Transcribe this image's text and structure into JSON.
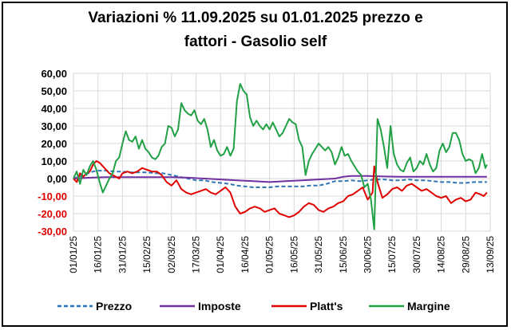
{
  "title_line1": "Variazioni % 11.09.2025 su 01.01.2025 prezzo e",
  "title_line2": "fattori - Gasolio self",
  "chart_data": {
    "type": "line",
    "title": "Variazioni % 11.09.2025 su 01.01.2025 prezzo e fattori - Gasolio self",
    "ylim": [
      -30,
      60
    ],
    "y_ticks": [
      "60,00",
      "50,00",
      "40,00",
      "30,00",
      "20,00",
      "10,00",
      "0,00",
      "-10,00",
      "-20,00",
      "-30,00"
    ],
    "x_ticks": [
      "01/01/25",
      "16/01/25",
      "31/01/25",
      "15/02/25",
      "02/03/25",
      "17/03/25",
      "01/04/25",
      "16/04/25",
      "01/05/25",
      "16/05/25",
      "31/05/25",
      "15/06/25",
      "30/06/25",
      "15/07/25",
      "30/07/25",
      "14/08/25",
      "29/08/25",
      "13/09/25"
    ],
    "grid": true,
    "legend_position": "bottom",
    "x_unit": "days since 01/01/25",
    "series": [
      {
        "name": "Prezzo",
        "color": "#2e75b6",
        "dash": true,
        "points": [
          [
            0,
            0
          ],
          [
            3,
            1
          ],
          [
            6,
            2
          ],
          [
            9,
            3
          ],
          [
            12,
            4
          ],
          [
            15,
            4.5
          ],
          [
            20,
            4.5
          ],
          [
            25,
            4
          ],
          [
            30,
            4
          ],
          [
            35,
            3.5
          ],
          [
            40,
            3.5
          ],
          [
            45,
            3.5
          ],
          [
            50,
            3
          ],
          [
            55,
            3
          ],
          [
            60,
            2
          ],
          [
            65,
            1
          ],
          [
            70,
            0
          ],
          [
            75,
            -1
          ],
          [
            80,
            -1
          ],
          [
            85,
            -2
          ],
          [
            90,
            -2.5
          ],
          [
            95,
            -3
          ],
          [
            100,
            -4
          ],
          [
            105,
            -4.5
          ],
          [
            110,
            -5
          ],
          [
            115,
            -5
          ],
          [
            120,
            -5
          ],
          [
            125,
            -4.5
          ],
          [
            130,
            -4.5
          ],
          [
            135,
            -4.5
          ],
          [
            140,
            -4.5
          ],
          [
            145,
            -4
          ],
          [
            150,
            -4
          ],
          [
            155,
            -3
          ],
          [
            160,
            -1.5
          ],
          [
            165,
            -1.5
          ],
          [
            170,
            -1
          ],
          [
            175,
            -1.5
          ],
          [
            180,
            -1
          ],
          [
            185,
            -0.5
          ],
          [
            190,
            -0.5
          ],
          [
            195,
            -1
          ],
          [
            200,
            -1
          ],
          [
            205,
            -0.5
          ],
          [
            210,
            -1
          ],
          [
            215,
            -1
          ],
          [
            220,
            -1.5
          ],
          [
            225,
            -2
          ],
          [
            230,
            -2
          ],
          [
            235,
            -2.5
          ],
          [
            240,
            -2.5
          ],
          [
            245,
            -2
          ],
          [
            250,
            -2
          ],
          [
            253,
            -2
          ]
        ]
      },
      {
        "name": "Imposte",
        "color": "#7030a0",
        "dash": false,
        "points": [
          [
            0,
            0
          ],
          [
            10,
            0.5
          ],
          [
            20,
            0.8
          ],
          [
            30,
            0.8
          ],
          [
            40,
            0.8
          ],
          [
            50,
            0.8
          ],
          [
            60,
            0.8
          ],
          [
            70,
            0.5
          ],
          [
            80,
            0
          ],
          [
            90,
            -0.5
          ],
          [
            100,
            -1
          ],
          [
            110,
            -1.5
          ],
          [
            120,
            -2
          ],
          [
            130,
            -1.5
          ],
          [
            140,
            -1
          ],
          [
            150,
            -0.5
          ],
          [
            160,
            0
          ],
          [
            165,
            1
          ],
          [
            170,
            1.5
          ],
          [
            180,
            1.5
          ],
          [
            190,
            1.2
          ],
          [
            200,
            1
          ],
          [
            210,
            1
          ],
          [
            220,
            1
          ],
          [
            230,
            1
          ],
          [
            240,
            1
          ],
          [
            250,
            1
          ],
          [
            253,
            1
          ]
        ]
      },
      {
        "name": "Platt's",
        "color": "#e00000",
        "dash": false,
        "points": [
          [
            0,
            0
          ],
          [
            2,
            -2
          ],
          [
            4,
            3
          ],
          [
            6,
            1
          ],
          [
            8,
            3
          ],
          [
            10,
            4
          ],
          [
            12,
            8
          ],
          [
            14,
            10
          ],
          [
            16,
            9
          ],
          [
            18,
            7
          ],
          [
            20,
            5
          ],
          [
            22,
            3
          ],
          [
            24,
            2
          ],
          [
            26,
            1
          ],
          [
            28,
            0
          ],
          [
            30,
            3
          ],
          [
            33,
            4
          ],
          [
            36,
            3
          ],
          [
            39,
            4
          ],
          [
            42,
            6
          ],
          [
            45,
            5
          ],
          [
            48,
            4
          ],
          [
            51,
            4
          ],
          [
            54,
            2
          ],
          [
            57,
            -2
          ],
          [
            60,
            -4
          ],
          [
            63,
            -1
          ],
          [
            66,
            -6
          ],
          [
            69,
            -8
          ],
          [
            72,
            -9
          ],
          [
            75,
            -8
          ],
          [
            78,
            -7
          ],
          [
            81,
            -6
          ],
          [
            84,
            -8
          ],
          [
            87,
            -9
          ],
          [
            90,
            -7
          ],
          [
            93,
            -5
          ],
          [
            96,
            -8
          ],
          [
            99,
            -16
          ],
          [
            102,
            -20
          ],
          [
            105,
            -19
          ],
          [
            108,
            -17
          ],
          [
            111,
            -16
          ],
          [
            114,
            -17
          ],
          [
            117,
            -19
          ],
          [
            120,
            -18
          ],
          [
            123,
            -17
          ],
          [
            126,
            -20
          ],
          [
            129,
            -21
          ],
          [
            132,
            -22
          ],
          [
            135,
            -21
          ],
          [
            138,
            -19
          ],
          [
            141,
            -16
          ],
          [
            144,
            -14
          ],
          [
            147,
            -15
          ],
          [
            150,
            -18
          ],
          [
            153,
            -19
          ],
          [
            156,
            -17
          ],
          [
            159,
            -16
          ],
          [
            162,
            -14
          ],
          [
            165,
            -13
          ],
          [
            168,
            -10
          ],
          [
            171,
            -9
          ],
          [
            174,
            -7
          ],
          [
            177,
            -5
          ],
          [
            180,
            -12
          ],
          [
            183,
            -8
          ],
          [
            184,
            7
          ],
          [
            186,
            -2
          ],
          [
            189,
            -11
          ],
          [
            192,
            -9
          ],
          [
            195,
            -6
          ],
          [
            198,
            -5
          ],
          [
            201,
            -7
          ],
          [
            204,
            -4
          ],
          [
            207,
            -3
          ],
          [
            210,
            -5
          ],
          [
            213,
            -7
          ],
          [
            216,
            -6
          ],
          [
            219,
            -8
          ],
          [
            222,
            -10
          ],
          [
            225,
            -11
          ],
          [
            228,
            -10
          ],
          [
            231,
            -14
          ],
          [
            234,
            -12
          ],
          [
            237,
            -11
          ],
          [
            240,
            -13
          ],
          [
            243,
            -12
          ],
          [
            246,
            -8
          ],
          [
            249,
            -9
          ],
          [
            251,
            -10
          ],
          [
            253,
            -8
          ]
        ]
      },
      {
        "name": "Margine",
        "color": "#21a045",
        "dash": false,
        "points": [
          [
            0,
            0
          ],
          [
            2,
            4
          ],
          [
            4,
            -3
          ],
          [
            6,
            5
          ],
          [
            8,
            2
          ],
          [
            10,
            7
          ],
          [
            12,
            10
          ],
          [
            14,
            5
          ],
          [
            16,
            -2
          ],
          [
            18,
            -8
          ],
          [
            20,
            -4
          ],
          [
            22,
            0
          ],
          [
            24,
            3
          ],
          [
            26,
            10
          ],
          [
            28,
            12
          ],
          [
            30,
            20
          ],
          [
            32,
            27
          ],
          [
            34,
            22
          ],
          [
            36,
            21
          ],
          [
            38,
            24
          ],
          [
            40,
            17
          ],
          [
            42,
            22
          ],
          [
            44,
            17
          ],
          [
            46,
            15
          ],
          [
            48,
            12
          ],
          [
            50,
            11
          ],
          [
            52,
            13
          ],
          [
            54,
            18
          ],
          [
            56,
            20
          ],
          [
            58,
            30
          ],
          [
            60,
            29
          ],
          [
            62,
            24
          ],
          [
            64,
            28
          ],
          [
            66,
            43
          ],
          [
            68,
            39
          ],
          [
            70,
            37
          ],
          [
            72,
            36
          ],
          [
            74,
            39
          ],
          [
            76,
            33
          ],
          [
            78,
            31
          ],
          [
            80,
            34
          ],
          [
            82,
            28
          ],
          [
            84,
            18
          ],
          [
            86,
            22
          ],
          [
            88,
            16
          ],
          [
            90,
            13
          ],
          [
            92,
            14
          ],
          [
            94,
            18
          ],
          [
            96,
            13
          ],
          [
            98,
            17
          ],
          [
            100,
            44
          ],
          [
            102,
            54
          ],
          [
            104,
            50
          ],
          [
            106,
            48
          ],
          [
            108,
            35
          ],
          [
            110,
            30
          ],
          [
            112,
            33
          ],
          [
            114,
            30
          ],
          [
            116,
            28
          ],
          [
            118,
            31
          ],
          [
            120,
            28
          ],
          [
            122,
            32
          ],
          [
            124,
            28
          ],
          [
            126,
            24
          ],
          [
            128,
            26
          ],
          [
            130,
            30
          ],
          [
            132,
            34
          ],
          [
            134,
            32
          ],
          [
            136,
            31
          ],
          [
            138,
            22
          ],
          [
            140,
            18
          ],
          [
            142,
            2
          ],
          [
            144,
            10
          ],
          [
            146,
            14
          ],
          [
            148,
            17
          ],
          [
            150,
            20
          ],
          [
            152,
            18
          ],
          [
            154,
            16
          ],
          [
            156,
            18
          ],
          [
            158,
            15
          ],
          [
            160,
            8
          ],
          [
            162,
            12
          ],
          [
            164,
            18
          ],
          [
            166,
            13
          ],
          [
            168,
            14
          ],
          [
            170,
            10
          ],
          [
            172,
            7
          ],
          [
            174,
            4
          ],
          [
            176,
            2
          ],
          [
            178,
            -5
          ],
          [
            180,
            -3
          ],
          [
            182,
            -12
          ],
          [
            184,
            -29
          ],
          [
            186,
            34
          ],
          [
            188,
            28
          ],
          [
            190,
            18
          ],
          [
            192,
            6
          ],
          [
            194,
            30
          ],
          [
            196,
            14
          ],
          [
            198,
            8
          ],
          [
            200,
            5
          ],
          [
            202,
            4
          ],
          [
            204,
            9
          ],
          [
            206,
            12
          ],
          [
            208,
            4
          ],
          [
            210,
            6
          ],
          [
            212,
            10
          ],
          [
            214,
            8
          ],
          [
            216,
            14
          ],
          [
            218,
            8
          ],
          [
            220,
            4
          ],
          [
            222,
            6
          ],
          [
            224,
            16
          ],
          [
            226,
            20
          ],
          [
            228,
            15
          ],
          [
            230,
            18
          ],
          [
            232,
            26
          ],
          [
            234,
            26
          ],
          [
            236,
            22
          ],
          [
            238,
            14
          ],
          [
            240,
            10
          ],
          [
            242,
            11
          ],
          [
            244,
            10
          ],
          [
            246,
            3
          ],
          [
            248,
            6
          ],
          [
            250,
            14
          ],
          [
            252,
            6
          ],
          [
            253,
            8
          ]
        ]
      }
    ]
  }
}
